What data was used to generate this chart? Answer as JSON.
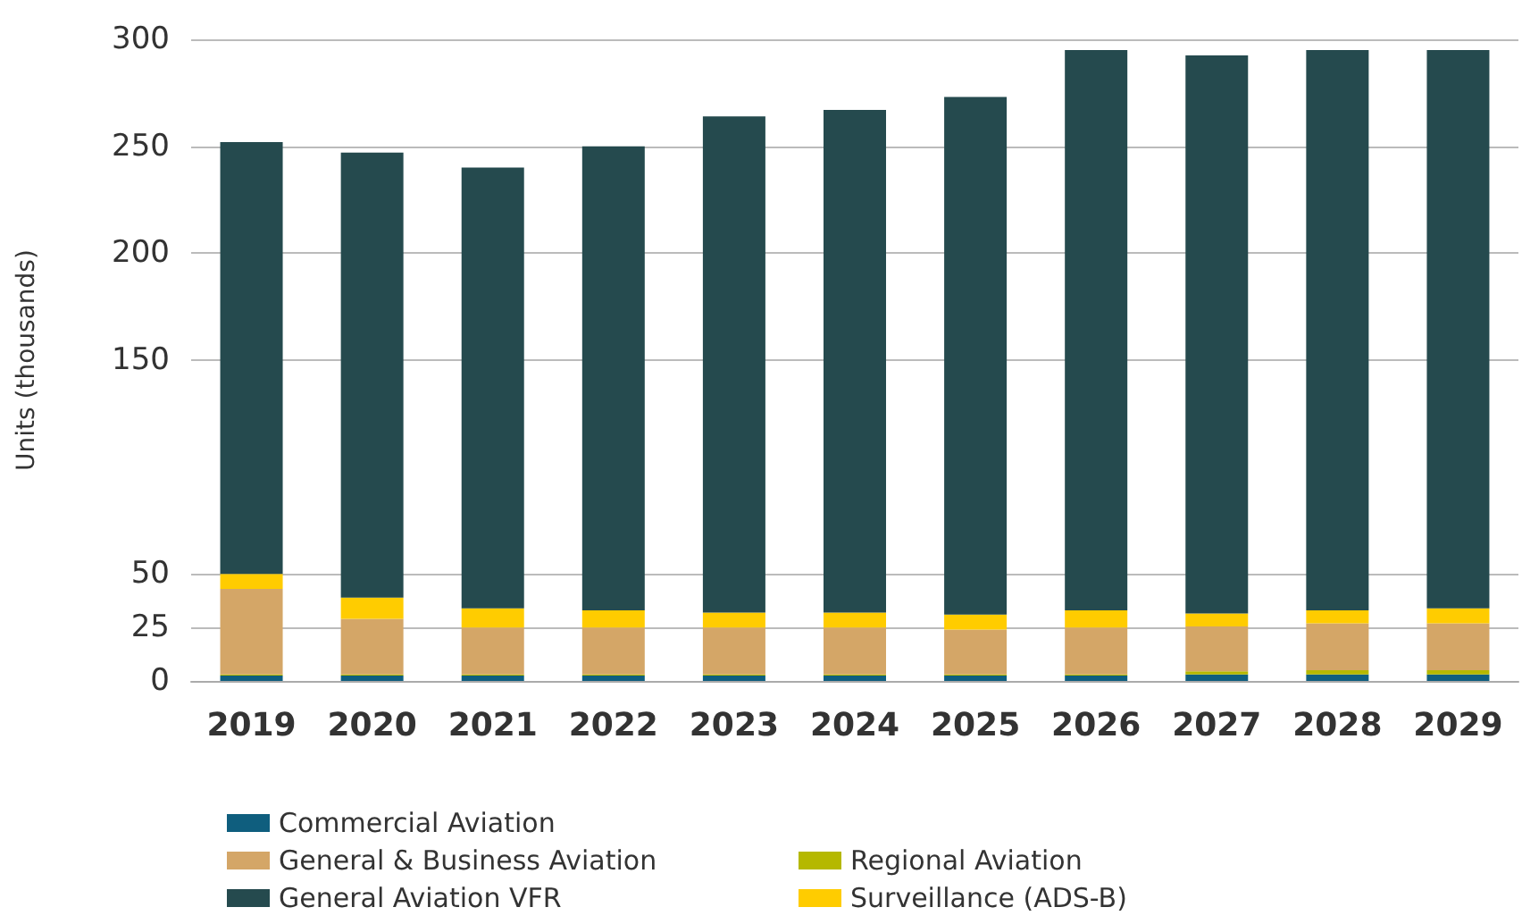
{
  "chart_data": {
    "type": "bar",
    "stacked": true,
    "categories": [
      "2019",
      "2020",
      "2021",
      "2022",
      "2023",
      "2024",
      "2025",
      "2026",
      "2027",
      "2028",
      "2029"
    ],
    "ylim": [
      0,
      300
    ],
    "yticks": [
      0,
      25,
      50,
      150,
      200,
      250,
      300
    ],
    "grid": "y",
    "ylabel": "Units (thousands)",
    "legend": "bottom",
    "series": [
      {
        "name": "Commercial Aviation",
        "color": "#0f5e7e",
        "values": [
          2.5,
          2.5,
          2.5,
          2.5,
          2.5,
          2.5,
          2.5,
          2.5,
          3,
          3,
          3
        ]
      },
      {
        "name": "Regional Aviation",
        "color": "#b5b800",
        "values": [
          0.5,
          0.5,
          0.5,
          0.5,
          0.5,
          0.5,
          0.5,
          0.5,
          1.5,
          2,
          2
        ]
      },
      {
        "name": "General & Business Aviation",
        "color": "#d4a667",
        "values": [
          40,
          26,
          22,
          22,
          22,
          22,
          21,
          22,
          21,
          22,
          22
        ]
      },
      {
        "name": "Surveillance (ADS-B)",
        "color": "#ffcc00",
        "values": [
          7,
          10,
          9,
          8,
          7,
          7,
          7,
          8,
          6,
          6,
          7
        ]
      },
      {
        "name": "General Aviation VFR",
        "color": "#254a4e",
        "values": [
          202,
          208,
          206,
          217,
          232,
          235,
          242,
          262,
          261,
          262,
          261
        ]
      }
    ]
  }
}
